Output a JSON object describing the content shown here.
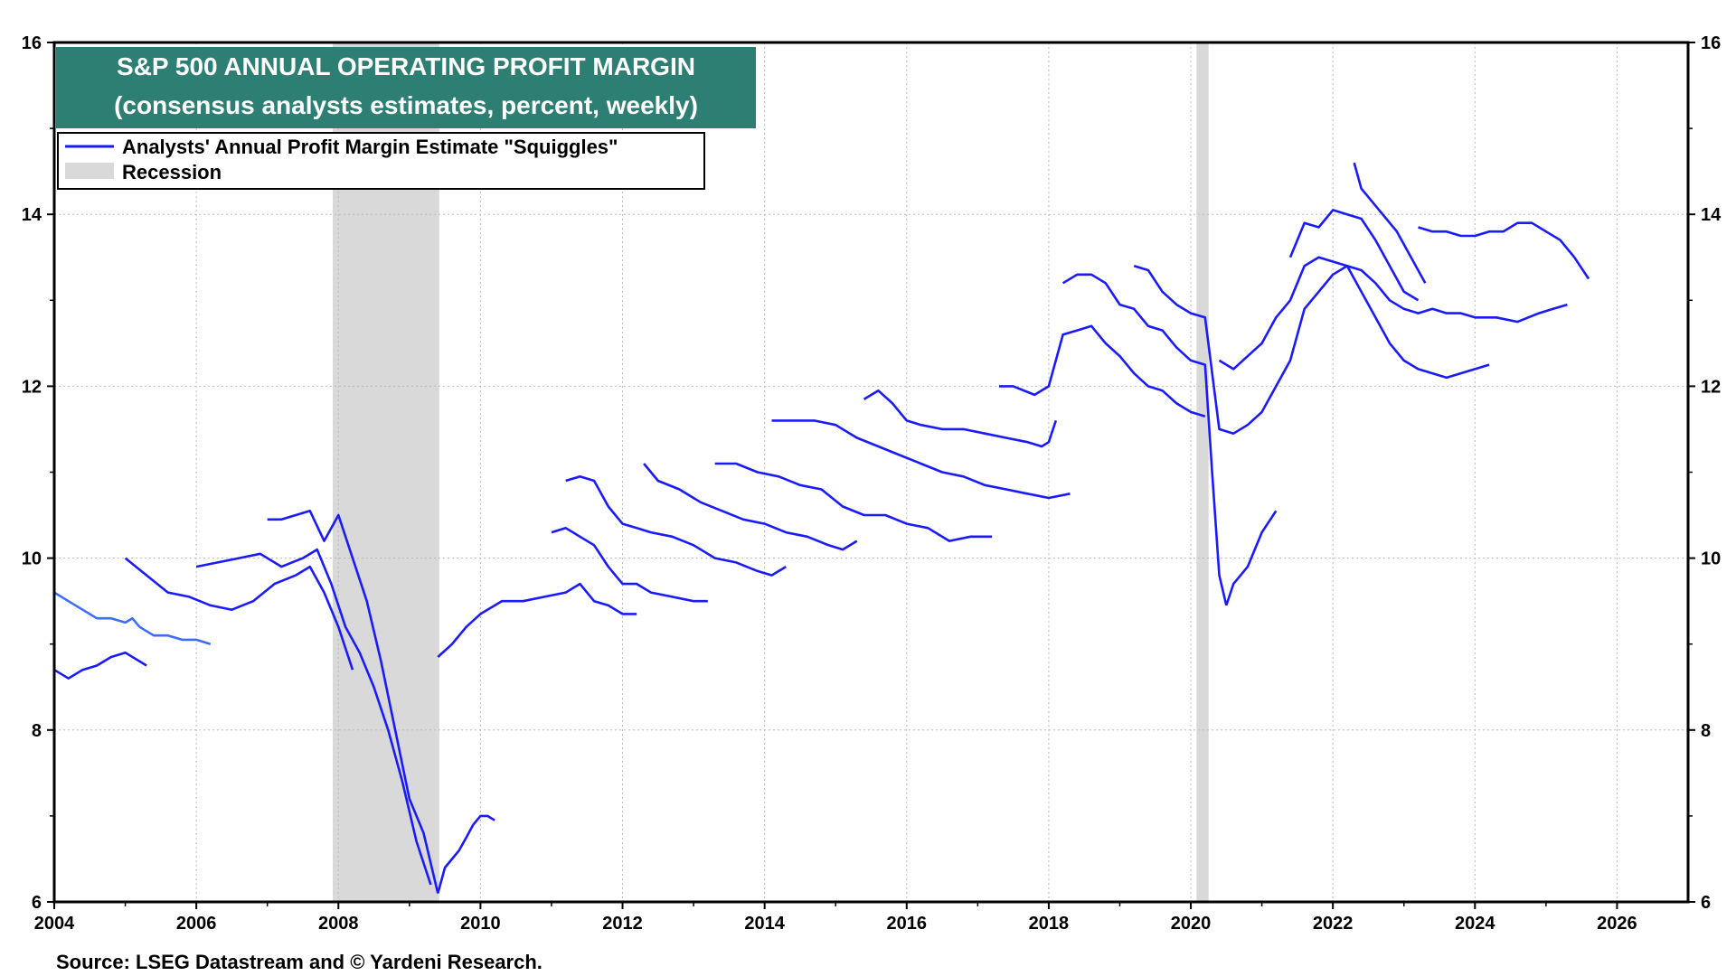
{
  "chart_data": {
    "type": "line",
    "title": "S&P 500 ANNUAL OPERATING PROFIT MARGIN",
    "subtitle": "(consensus analysts estimates, percent, weekly)",
    "source": "Source: LSEG Datastream and © Yardeni Research.",
    "legend": {
      "placement": "top-left",
      "entries": [
        {
          "label": "Analysts' Annual Profit Margin Estimate \"Squiggles\"",
          "kind": "line",
          "color": "#1a1aff"
        },
        {
          "label": "Recession",
          "kind": "box",
          "color": "#d9d9d9"
        }
      ]
    },
    "xlim": [
      2004,
      2027
    ],
    "ylim": [
      6,
      16
    ],
    "x_ticks": [
      "2004",
      "2006",
      "2008",
      "2010",
      "2012",
      "2014",
      "2016",
      "2018",
      "2020",
      "2022",
      "2024",
      "2026"
    ],
    "y_ticks": [
      "6",
      "8",
      "10",
      "12",
      "14",
      "16"
    ],
    "grid": true,
    "dual_y_axis": true,
    "recessions": [
      [
        2007.92,
        2009.42
      ],
      [
        2020.08,
        2020.25
      ]
    ],
    "colors": {
      "primary": "#1a1aff",
      "early": "#3d6cff",
      "title_bg": "#2e7f73",
      "recession": "#d9d9d9"
    },
    "series": [
      {
        "x": [
          2004.0,
          2004.2,
          2004.4,
          2004.6,
          2004.8,
          2005.0,
          2005.1,
          2005.2
        ],
        "values": [
          9.6,
          9.5,
          9.4,
          9.3,
          9.3,
          9.25,
          9.3,
          9.2
        ],
        "color_key": "early"
      },
      {
        "x": [
          2005.2,
          2005.4,
          2005.6,
          2005.8,
          2006.0,
          2006.2
        ],
        "values": [
          9.2,
          9.1,
          9.1,
          9.05,
          9.05,
          9.0
        ],
        "color_key": "early"
      },
      {
        "x": [
          2004.0,
          2004.2,
          2004.4,
          2004.6,
          2004.8,
          2005.0,
          2005.3
        ],
        "values": [
          8.7,
          8.6,
          8.7,
          8.75,
          8.85,
          8.9,
          8.75
        ]
      },
      {
        "x": [
          2005.0,
          2005.3,
          2005.6,
          2005.9,
          2006.2,
          2006.5,
          2006.8,
          2007.1,
          2007.4,
          2007.6,
          2007.8,
          2008.0,
          2008.2
        ],
        "values": [
          10.0,
          9.8,
          9.6,
          9.55,
          9.45,
          9.4,
          9.5,
          9.7,
          9.8,
          9.9,
          9.6,
          9.2,
          8.7
        ]
      },
      {
        "x": [
          2006.0,
          2006.3,
          2006.6,
          2006.9,
          2007.2,
          2007.5,
          2007.7,
          2007.9,
          2008.1,
          2008.3,
          2008.5,
          2008.7,
          2008.9,
          2009.1,
          2009.3
        ],
        "values": [
          9.9,
          9.95,
          10.0,
          10.05,
          9.9,
          10.0,
          10.1,
          9.7,
          9.2,
          8.9,
          8.5,
          8.0,
          7.4,
          6.7,
          6.2
        ]
      },
      {
        "x": [
          2007.0,
          2007.2,
          2007.4,
          2007.6,
          2007.8,
          2008.0,
          2008.2,
          2008.4,
          2008.6,
          2008.8,
          2009.0,
          2009.2,
          2009.4
        ],
        "values": [
          10.45,
          10.45,
          10.5,
          10.55,
          10.2,
          10.5,
          10.0,
          9.5,
          8.8,
          8.0,
          7.2,
          6.8,
          6.1
        ]
      },
      {
        "x": [
          2009.4,
          2009.5,
          2009.6,
          2009.7,
          2009.8,
          2009.9,
          2010.0,
          2010.1,
          2010.2
        ],
        "values": [
          6.1,
          6.4,
          6.5,
          6.6,
          6.75,
          6.9,
          7.0,
          7.0,
          6.95
        ]
      },
      {
        "x": [
          2009.4,
          2009.6,
          2009.8,
          2010.0,
          2010.3,
          2010.6,
          2010.9,
          2011.2,
          2011.4,
          2011.6,
          2011.8,
          2012.0,
          2012.2
        ],
        "values": [
          8.85,
          9.0,
          9.2,
          9.35,
          9.5,
          9.5,
          9.55,
          9.6,
          9.7,
          9.5,
          9.45,
          9.35,
          9.35
        ]
      },
      {
        "x": [
          2011.0,
          2011.2,
          2011.4,
          2011.6,
          2011.8,
          2012.0,
          2012.2,
          2012.4,
          2012.7,
          2013.0,
          2013.2
        ],
        "values": [
          10.3,
          10.35,
          10.25,
          10.15,
          9.9,
          9.7,
          9.7,
          9.6,
          9.55,
          9.5,
          9.5
        ]
      },
      {
        "x": [
          2011.2,
          2011.4,
          2011.6,
          2011.8,
          2012.0,
          2012.2,
          2012.4,
          2012.7,
          2013.0,
          2013.3,
          2013.6,
          2013.9,
          2014.1,
          2014.3
        ],
        "values": [
          10.9,
          10.95,
          10.9,
          10.6,
          10.4,
          10.35,
          10.3,
          10.25,
          10.15,
          10.0,
          9.95,
          9.85,
          9.8,
          9.9
        ]
      },
      {
        "x": [
          2012.3,
          2012.5,
          2012.8,
          2013.1,
          2013.4,
          2013.7,
          2014.0,
          2014.3,
          2014.6,
          2014.9,
          2015.1,
          2015.3
        ],
        "values": [
          11.1,
          10.9,
          10.8,
          10.65,
          10.55,
          10.45,
          10.4,
          10.3,
          10.25,
          10.15,
          10.1,
          10.2
        ]
      },
      {
        "x": [
          2013.3,
          2013.6,
          2013.9,
          2014.2,
          2014.5,
          2014.8,
          2015.1,
          2015.4,
          2015.7,
          2016.0,
          2016.3,
          2016.6,
          2016.9,
          2017.2
        ],
        "values": [
          11.1,
          11.1,
          11.0,
          10.95,
          10.85,
          10.8,
          10.6,
          10.5,
          10.5,
          10.4,
          10.35,
          10.2,
          10.25,
          10.25
        ]
      },
      {
        "x": [
          2014.1,
          2014.4,
          2014.7,
          2015.0,
          2015.3,
          2015.6,
          2015.9,
          2016.2,
          2016.5,
          2016.8,
          2017.1,
          2017.4,
          2017.7,
          2018.0,
          2018.3
        ],
        "values": [
          11.6,
          11.6,
          11.6,
          11.55,
          11.4,
          11.3,
          11.2,
          11.1,
          11.0,
          10.95,
          10.85,
          10.8,
          10.75,
          10.7,
          10.75
        ]
      },
      {
        "x": [
          2015.4,
          2015.6,
          2015.8,
          2016.0,
          2016.2,
          2016.5,
          2016.8,
          2017.1,
          2017.4,
          2017.7,
          2017.9,
          2018.0,
          2018.1
        ],
        "values": [
          11.85,
          11.95,
          11.8,
          11.6,
          11.55,
          11.5,
          11.5,
          11.45,
          11.4,
          11.35,
          11.3,
          11.35,
          11.6
        ]
      },
      {
        "x": [
          2017.3,
          2017.5,
          2017.8,
          2018.0,
          2018.2,
          2018.4,
          2018.6,
          2018.8,
          2019.0,
          2019.2,
          2019.4,
          2019.6,
          2019.8,
          2020.0,
          2020.2
        ],
        "values": [
          12.0,
          12.0,
          11.9,
          12.0,
          12.6,
          12.65,
          12.7,
          12.5,
          12.35,
          12.15,
          12.0,
          11.95,
          11.8,
          11.7,
          11.65
        ]
      },
      {
        "x": [
          2018.2,
          2018.4,
          2018.6,
          2018.8,
          2019.0,
          2019.2,
          2019.4,
          2019.6,
          2019.8,
          2020.0,
          2020.2,
          2020.3,
          2020.4,
          2020.5
        ],
        "values": [
          13.2,
          13.3,
          13.3,
          13.2,
          12.95,
          12.9,
          12.7,
          12.65,
          12.45,
          12.3,
          12.25,
          11.0,
          9.8,
          9.45
        ]
      },
      {
        "x": [
          2020.5,
          2020.6,
          2020.8,
          2021.0,
          2021.2
        ],
        "values": [
          9.45,
          9.7,
          9.9,
          10.3,
          10.55
        ]
      },
      {
        "x": [
          2019.2,
          2019.4,
          2019.6,
          2019.8,
          2020.0,
          2020.2,
          2020.4,
          2020.6,
          2020.8,
          2021.0,
          2021.2,
          2021.4,
          2021.6,
          2021.8,
          2022.0,
          2022.2,
          2022.4,
          2022.6,
          2022.8,
          2023.0,
          2023.2,
          2023.4,
          2023.6,
          2023.8,
          2024.0,
          2024.2
        ],
        "values": [
          13.4,
          13.35,
          13.1,
          12.95,
          12.85,
          12.8,
          11.5,
          11.45,
          11.55,
          11.7,
          12.0,
          12.3,
          12.9,
          13.1,
          13.3,
          13.4,
          13.1,
          12.8,
          12.5,
          12.3,
          12.2,
          12.15,
          12.1,
          12.15,
          12.2,
          12.25
        ]
      },
      {
        "x": [
          2020.4,
          2020.6,
          2020.8,
          2021.0,
          2021.2,
          2021.4,
          2021.6,
          2021.8,
          2022.0,
          2022.2,
          2022.4,
          2022.6,
          2022.8,
          2023.0,
          2023.2,
          2023.4,
          2023.6,
          2023.8,
          2024.0,
          2024.3,
          2024.6,
          2024.9,
          2025.1,
          2025.3
        ],
        "values": [
          12.3,
          12.2,
          12.35,
          12.5,
          12.8,
          13.0,
          13.4,
          13.5,
          13.45,
          13.4,
          13.35,
          13.2,
          13.0,
          12.9,
          12.85,
          12.9,
          12.85,
          12.85,
          12.8,
          12.8,
          12.75,
          12.85,
          12.9,
          12.95
        ]
      },
      {
        "x": [
          2021.4,
          2021.6,
          2021.8,
          2022.0,
          2022.2,
          2022.4,
          2022.6,
          2022.8,
          2023.0,
          2023.2
        ],
        "values": [
          13.5,
          13.9,
          13.85,
          14.05,
          14.0,
          13.95,
          13.7,
          13.4,
          13.1,
          13.0
        ]
      },
      {
        "x": [
          2022.3,
          2022.4,
          2022.5,
          2022.7,
          2022.9,
          2023.1,
          2023.3
        ],
        "values": [
          14.6,
          14.3,
          14.2,
          14.0,
          13.8,
          13.5,
          13.2
        ]
      },
      {
        "x": [
          2023.2,
          2023.4,
          2023.6,
          2023.8,
          2024.0,
          2024.2,
          2024.4,
          2024.6,
          2024.8,
          2025.0,
          2025.2,
          2025.4,
          2025.6
        ],
        "values": [
          13.85,
          13.8,
          13.8,
          13.75,
          13.75,
          13.8,
          13.8,
          13.9,
          13.9,
          13.8,
          13.7,
          13.5,
          13.25
        ]
      }
    ]
  }
}
